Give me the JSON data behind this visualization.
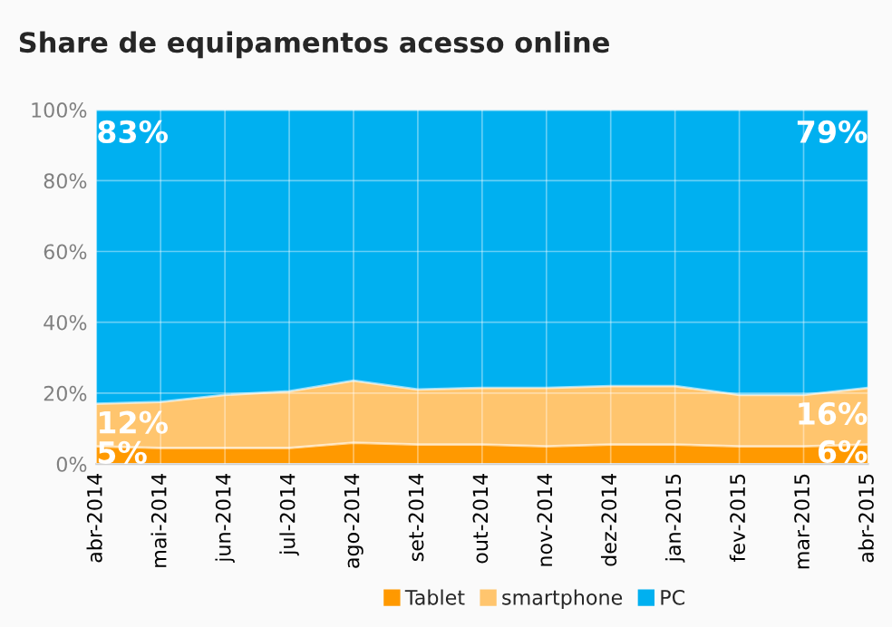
{
  "chart_data": {
    "type": "area",
    "stacked": true,
    "title": "Share de equipamentos acesso online",
    "categories": [
      "abr-2014",
      "mai-2014",
      "jun-2014",
      "jul-2014",
      "ago-2014",
      "set-2014",
      "out-2014",
      "nov-2014",
      "dez-2014",
      "jan-2015",
      "fev-2015",
      "mar-2015",
      "abr-2015"
    ],
    "series": [
      {
        "name": "Tablet",
        "color": "#ff9900",
        "values": [
          5,
          4.5,
          4.5,
          4.5,
          6,
          5.5,
          5.5,
          5,
          5.5,
          5.5,
          5,
          5,
          5.5
        ],
        "value_labels": [
          "5%",
          null,
          null,
          null,
          null,
          null,
          null,
          null,
          null,
          null,
          null,
          null,
          "6%"
        ]
      },
      {
        "name": "smartphone",
        "color": "#ffc56e",
        "values": [
          12,
          13,
          15,
          16,
          17.5,
          15.5,
          16,
          16.5,
          16.5,
          16.5,
          14.5,
          14.5,
          16
        ],
        "value_labels": [
          "12%",
          null,
          null,
          null,
          null,
          null,
          null,
          null,
          null,
          null,
          null,
          null,
          "16%"
        ]
      },
      {
        "name": "PC",
        "color": "#00b0f0",
        "values": [
          83,
          82.5,
          80.5,
          79.5,
          76.5,
          79,
          78.5,
          78.5,
          78,
          78,
          80.5,
          80.5,
          78.5
        ],
        "value_labels": [
          "83%",
          null,
          null,
          null,
          null,
          null,
          null,
          null,
          null,
          null,
          null,
          null,
          "79%"
        ]
      }
    ],
    "ylim": [
      0,
      100
    ],
    "yticks": [
      {
        "value": 0,
        "label": "0%"
      },
      {
        "value": 20,
        "label": "20%"
      },
      {
        "value": 40,
        "label": "40%"
      },
      {
        "value": 60,
        "label": "60%"
      },
      {
        "value": 80,
        "label": "80%"
      },
      {
        "value": 100,
        "label": "100%"
      }
    ],
    "grid": true,
    "legend": "bottom"
  }
}
